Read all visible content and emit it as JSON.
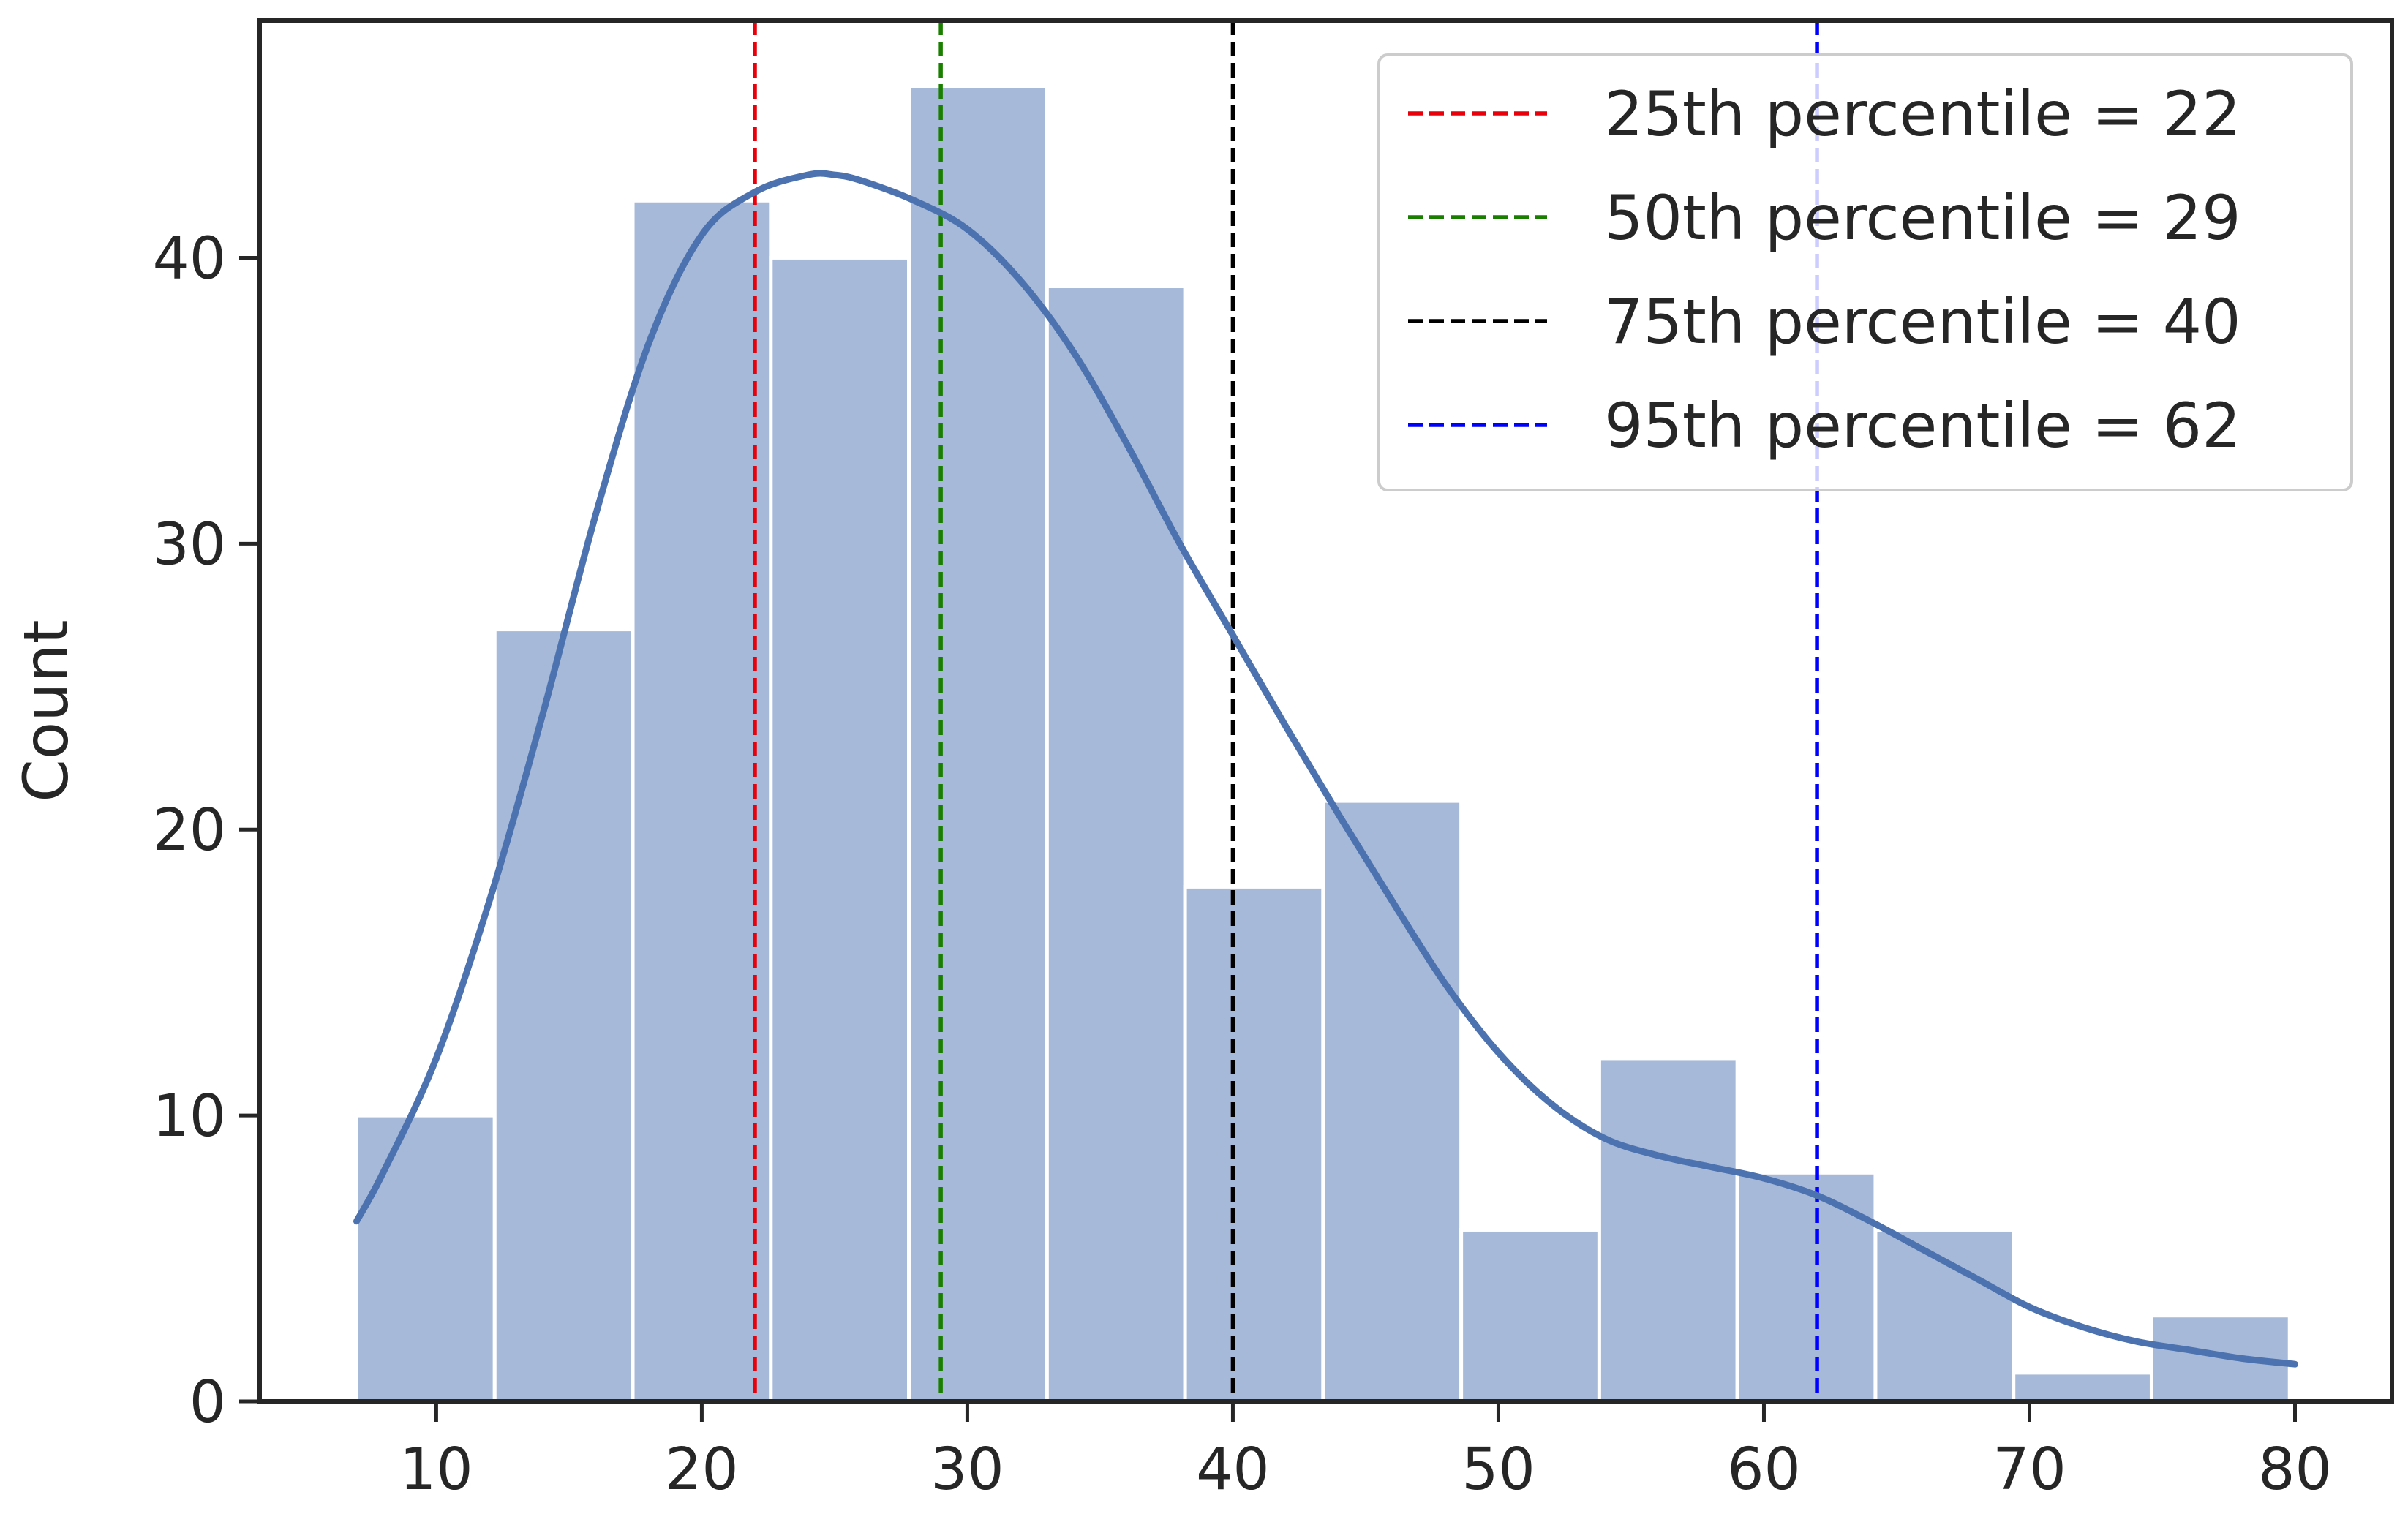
{
  "chart_data": {
    "type": "histogram",
    "title": "",
    "xlabel": "",
    "ylabel": "Count",
    "xlim": [
      3.35,
      83.65
    ],
    "ylim": [
      0,
      48.3
    ],
    "xticks": [
      10,
      20,
      30,
      40,
      50,
      60,
      70,
      80
    ],
    "yticks": [
      0,
      10,
      20,
      30,
      40
    ],
    "bar_color": "#a6b9d8",
    "bins": [
      {
        "start": 7.0,
        "end": 12.2,
        "count": 10
      },
      {
        "start": 12.2,
        "end": 17.4,
        "count": 27
      },
      {
        "start": 17.4,
        "end": 22.6,
        "count": 42
      },
      {
        "start": 22.6,
        "end": 27.8,
        "count": 40
      },
      {
        "start": 27.8,
        "end": 33.0,
        "count": 46
      },
      {
        "start": 33.0,
        "end": 38.2,
        "count": 39
      },
      {
        "start": 38.2,
        "end": 43.4,
        "count": 18
      },
      {
        "start": 43.4,
        "end": 48.6,
        "count": 21
      },
      {
        "start": 48.6,
        "end": 53.8,
        "count": 6
      },
      {
        "start": 53.8,
        "end": 59.0,
        "count": 12
      },
      {
        "start": 59.0,
        "end": 64.2,
        "count": 8
      },
      {
        "start": 64.2,
        "end": 69.4,
        "count": 6
      },
      {
        "start": 69.4,
        "end": 74.6,
        "count": 1
      },
      {
        "start": 74.6,
        "end": 79.8,
        "count": 3
      }
    ],
    "kde": {
      "color": "#4c72b0",
      "x": [
        7,
        8,
        10,
        12,
        14,
        16,
        18,
        20,
        22,
        24,
        25,
        26,
        28,
        30,
        32,
        34,
        36,
        38,
        40,
        42,
        44,
        46,
        48,
        50,
        52,
        54,
        56,
        58,
        60,
        62,
        64,
        66,
        68,
        70,
        72,
        74,
        76,
        78,
        80
      ],
      "y": [
        6.3,
        8.0,
        12.0,
        17.5,
        24.0,
        31.0,
        37.0,
        40.8,
        42.3,
        42.9,
        42.9,
        42.7,
        42.0,
        41.0,
        39.2,
        36.7,
        33.5,
        30.0,
        26.8,
        23.6,
        20.5,
        17.5,
        14.6,
        12.2,
        10.4,
        9.2,
        8.6,
        8.2,
        7.8,
        7.2,
        6.3,
        5.3,
        4.3,
        3.3,
        2.6,
        2.1,
        1.8,
        1.5,
        1.3
      ]
    },
    "percentiles": [
      {
        "label": "25th percentile = 22",
        "value": 22,
        "color": "#e8000b"
      },
      {
        "label": "50th percentile = 29",
        "value": 29,
        "color": "#1a7f00"
      },
      {
        "label": "75th percentile = 40",
        "value": 40,
        "color": "#000000"
      },
      {
        "label": "95th percentile = 62",
        "value": 62,
        "color": "#0000ff"
      }
    ],
    "legend_position": "top-right"
  }
}
